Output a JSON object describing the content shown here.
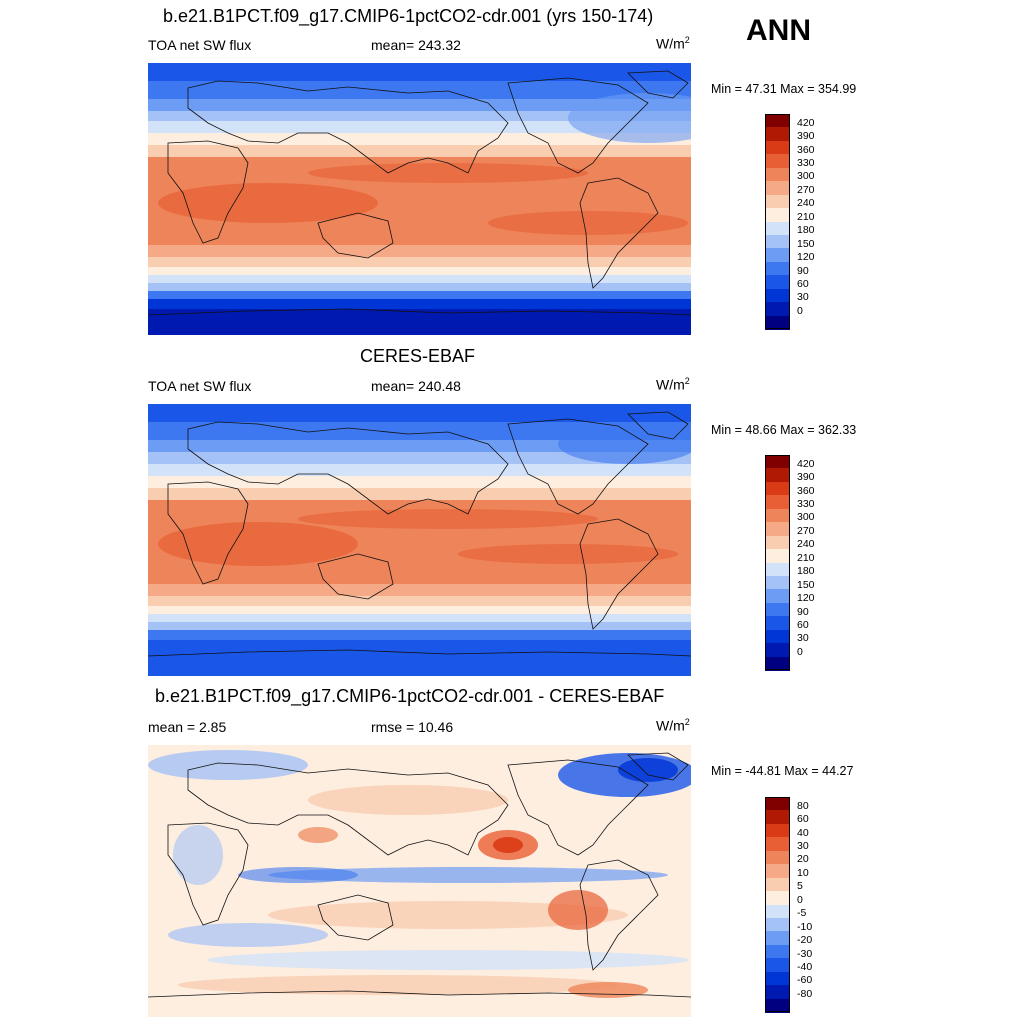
{
  "season": "ANN",
  "unit": {
    "base": "W/m",
    "sup": "2"
  },
  "palette": {
    "abs": [
      "#000080",
      "#0019b0",
      "#0035d6",
      "#1a56e8",
      "#3d78f0",
      "#6d9cf4",
      "#a5c2f6",
      "#d2e2f8",
      "#fdeee0",
      "#f9cdb0",
      "#f5a986",
      "#ee8459",
      "#e85f35",
      "#d93b16",
      "#b01a05",
      "#800000"
    ],
    "diff": [
      "#000080",
      "#0019b0",
      "#0035d6",
      "#1a56e8",
      "#3d78f0",
      "#6d9cf4",
      "#a5c2f6",
      "#d2e2f8",
      "#fdeee0",
      "#f9cdb0",
      "#f5a986",
      "#ee8459",
      "#e85f35",
      "#d93b16",
      "#b01a05",
      "#800000"
    ]
  },
  "panels": [
    {
      "title": "b.e21.B1PCT.f09_g17.CMIP6-1pctCO2-cdr.001 (yrs 150-174)",
      "left_label": "TOA net SW flux",
      "center_label": "mean= 243.32",
      "minmax": "Min =  47.31 Max = 354.99",
      "ticks": [
        "420",
        "390",
        "360",
        "330",
        "300",
        "270",
        "240",
        "210",
        "180",
        "150",
        "120",
        "90",
        "60",
        "30",
        "0"
      ]
    },
    {
      "title": "CERES-EBAF",
      "left_label": "TOA net SW flux",
      "center_label": "mean= 240.48",
      "minmax": "Min =  48.66 Max = 362.33",
      "ticks": [
        "420",
        "390",
        "360",
        "330",
        "300",
        "270",
        "240",
        "210",
        "180",
        "150",
        "120",
        "90",
        "60",
        "30",
        "0"
      ]
    },
    {
      "title": "b.e21.B1PCT.f09_g17.CMIP6-1pctCO2-cdr.001 - CERES-EBAF",
      "left_label": "mean =   2.85",
      "center_label": "rmse =  10.46",
      "minmax": "Min = -44.81 Max =  44.27",
      "ticks": [
        "80",
        "60",
        "40",
        "30",
        "20",
        "10",
        "5",
        "0",
        "-5",
        "-10",
        "-20",
        "-30",
        "-40",
        "-60",
        "-80"
      ]
    }
  ]
}
